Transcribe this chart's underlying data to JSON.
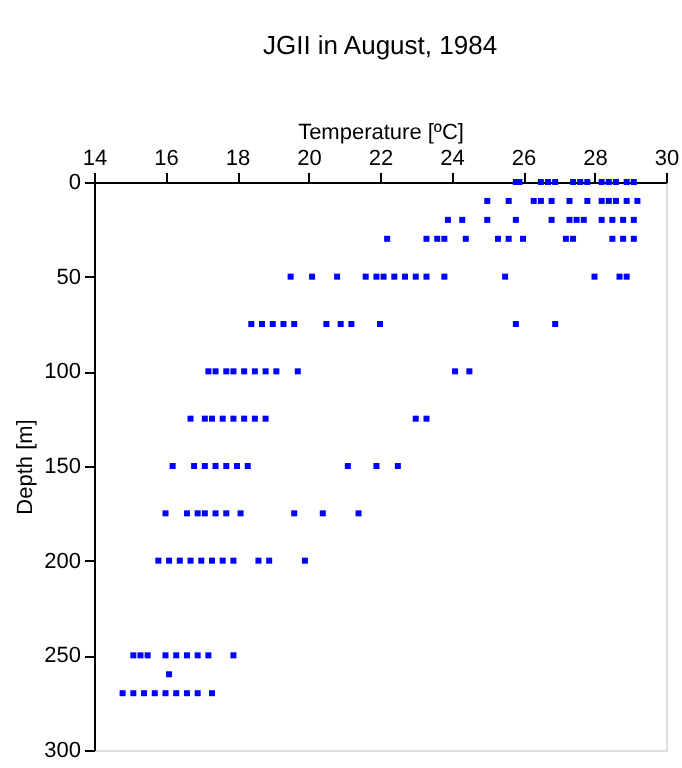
{
  "chart_data": {
    "type": "scatter",
    "title": "JGII in August, 1984",
    "xlabel": "Temperature [ºC]",
    "ylabel": "Depth [m]",
    "xlim": [
      14,
      30
    ],
    "xticks": [
      14,
      16,
      18,
      20,
      22,
      24,
      26,
      28,
      30
    ],
    "ylim": [
      300,
      0
    ],
    "yticks": [
      0,
      50,
      100,
      150,
      200,
      250,
      300
    ],
    "grid": false,
    "legend": false,
    "marker": "square",
    "series": [
      {
        "color": "#0000ff",
        "x": [
          25.8,
          25.9,
          26.5,
          26.7,
          26.9,
          27.4,
          27.6,
          27.8,
          28.2,
          28.4,
          28.6,
          28.9,
          29.1
        ],
        "values": [
          0,
          0,
          0,
          0,
          0,
          0,
          0,
          0,
          0,
          0,
          0,
          0,
          0
        ]
      },
      {
        "color": "#0000ff",
        "x": [
          25.0,
          25.6,
          26.3,
          26.5,
          26.8,
          27.3,
          27.8,
          28.2,
          28.4,
          28.6,
          28.9,
          29.2
        ],
        "values": [
          10,
          10,
          10,
          10,
          10,
          10,
          10,
          10,
          10,
          10,
          10,
          10
        ]
      },
      {
        "color": "#0000ff",
        "x": [
          23.9,
          24.3,
          25.0,
          25.8,
          26.8,
          27.3,
          27.5,
          27.7,
          28.2,
          28.5,
          28.8,
          29.1
        ],
        "values": [
          20,
          20,
          20,
          20,
          20,
          20,
          20,
          20,
          20,
          20,
          20,
          20
        ]
      },
      {
        "color": "#0000ff",
        "x": [
          22.2,
          23.3,
          23.6,
          23.8,
          24.4,
          25.3,
          25.6,
          26.0,
          27.2,
          27.4,
          28.5,
          28.8,
          29.1
        ],
        "values": [
          30,
          30,
          30,
          30,
          30,
          30,
          30,
          30,
          30,
          30,
          30,
          30,
          30
        ]
      },
      {
        "color": "#0000ff",
        "x": [
          19.5,
          20.1,
          20.8,
          21.6,
          21.9,
          22.1,
          22.4,
          22.7,
          23.0,
          23.3,
          23.8,
          25.5,
          28.0,
          28.7,
          28.9
        ],
        "values": [
          50,
          50,
          50,
          50,
          50,
          50,
          50,
          50,
          50,
          50,
          50,
          50,
          50,
          50,
          50
        ]
      },
      {
        "color": "#0000ff",
        "x": [
          18.4,
          18.7,
          19.0,
          19.3,
          19.6,
          20.5,
          20.9,
          21.2,
          22.0,
          25.8,
          26.9
        ],
        "values": [
          75,
          75,
          75,
          75,
          75,
          75,
          75,
          75,
          75,
          75,
          75
        ]
      },
      {
        "color": "#0000ff",
        "x": [
          17.2,
          17.4,
          17.7,
          17.9,
          18.2,
          18.5,
          18.8,
          19.1,
          19.7,
          24.1,
          24.5
        ],
        "values": [
          100,
          100,
          100,
          100,
          100,
          100,
          100,
          100,
          100,
          100,
          100
        ]
      },
      {
        "color": "#0000ff",
        "x": [
          16.7,
          17.1,
          17.3,
          17.6,
          17.9,
          18.2,
          18.5,
          18.8,
          23.0,
          23.3
        ],
        "values": [
          125,
          125,
          125,
          125,
          125,
          125,
          125,
          125,
          125,
          125
        ]
      },
      {
        "color": "#0000ff",
        "x": [
          16.2,
          16.8,
          17.1,
          17.4,
          17.7,
          18.0,
          18.3,
          21.1,
          21.9,
          22.5
        ],
        "values": [
          150,
          150,
          150,
          150,
          150,
          150,
          150,
          150,
          150,
          150
        ]
      },
      {
        "color": "#0000ff",
        "x": [
          16.0,
          16.6,
          16.9,
          17.1,
          17.4,
          17.7,
          18.1,
          19.6,
          20.4,
          21.4
        ],
        "values": [
          175,
          175,
          175,
          175,
          175,
          175,
          175,
          175,
          175,
          175
        ]
      },
      {
        "color": "#0000ff",
        "x": [
          15.8,
          16.1,
          16.4,
          16.7,
          17.0,
          17.3,
          17.6,
          17.9,
          18.6,
          18.9,
          19.9
        ],
        "values": [
          200,
          200,
          200,
          200,
          200,
          200,
          200,
          200,
          200,
          200,
          200
        ]
      },
      {
        "color": "#0000ff",
        "x": [
          15.1,
          15.3,
          15.5,
          16.0,
          16.3,
          16.6,
          16.9,
          17.2,
          17.9
        ],
        "values": [
          250,
          250,
          250,
          250,
          250,
          250,
          250,
          250,
          250
        ]
      },
      {
        "color": "#0000ff",
        "x": [
          16.1
        ],
        "values": [
          260
        ]
      },
      {
        "color": "#0000ff",
        "x": [
          14.8,
          15.1,
          15.4,
          15.7,
          16.0,
          16.3,
          16.6,
          16.9,
          17.3
        ],
        "values": [
          270,
          270,
          270,
          270,
          270,
          270,
          270,
          270,
          270
        ]
      }
    ]
  }
}
